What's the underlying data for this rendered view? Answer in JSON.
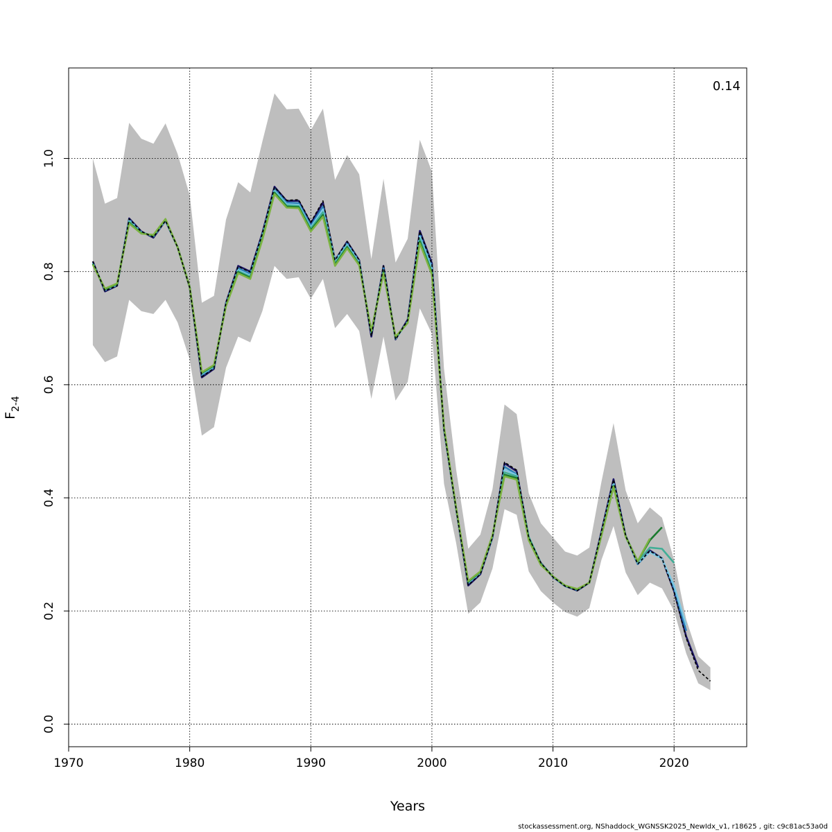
{
  "chart_data": {
    "type": "line",
    "xlabel": "Years",
    "ylabel_main": "F",
    "ylabel_sub": "2-4",
    "annotation": "0.14",
    "xlim": [
      1970,
      2026
    ],
    "ylim": [
      -0.04,
      1.16
    ],
    "x_ticks": [
      1970,
      1980,
      1990,
      2000,
      2010,
      2020
    ],
    "y_ticks": [
      0.0,
      0.2,
      0.4,
      0.6,
      0.8,
      1.0
    ],
    "y_tick_labels": [
      "0.0",
      "0.2",
      "0.4",
      "0.6",
      "0.8",
      "1.0"
    ],
    "grid": true,
    "band_color": "#bebebe",
    "confidence_band": {
      "years": [
        1972,
        1973,
        1974,
        1975,
        1976,
        1977,
        1978,
        1979,
        1980,
        1981,
        1982,
        1983,
        1984,
        1985,
        1986,
        1987,
        1988,
        1989,
        1990,
        1991,
        1992,
        1993,
        1994,
        1995,
        1996,
        1997,
        1998,
        1999,
        2000,
        2001,
        2002,
        2003,
        2004,
        2005,
        2006,
        2007,
        2008,
        2009,
        2010,
        2011,
        2012,
        2013,
        2014,
        2015,
        2016,
        2017,
        2018,
        2019,
        2020,
        2021,
        2022,
        2023
      ],
      "lower": [
        0.67,
        0.64,
        0.65,
        0.75,
        0.73,
        0.725,
        0.75,
        0.71,
        0.645,
        0.51,
        0.525,
        0.63,
        0.685,
        0.675,
        0.73,
        0.81,
        0.787,
        0.79,
        0.752,
        0.787,
        0.7,
        0.725,
        0.695,
        0.575,
        0.685,
        0.572,
        0.605,
        0.735,
        0.69,
        0.425,
        0.32,
        0.195,
        0.215,
        0.275,
        0.38,
        0.37,
        0.27,
        0.235,
        0.215,
        0.198,
        0.19,
        0.205,
        0.29,
        0.35,
        0.268,
        0.228,
        0.25,
        0.24,
        0.2,
        0.125,
        0.072,
        0.06
      ],
      "upper": [
        1.0,
        0.92,
        0.93,
        1.063,
        1.035,
        1.026,
        1.062,
        1.008,
        0.935,
        0.745,
        0.757,
        0.892,
        0.958,
        0.94,
        1.03,
        1.115,
        1.087,
        1.088,
        1.05,
        1.088,
        0.962,
        1.006,
        0.972,
        0.822,
        0.964,
        0.816,
        0.858,
        1.033,
        0.977,
        0.628,
        0.45,
        0.31,
        0.335,
        0.415,
        0.565,
        0.548,
        0.408,
        0.355,
        0.33,
        0.305,
        0.298,
        0.312,
        0.428,
        0.532,
        0.413,
        0.355,
        0.383,
        0.365,
        0.29,
        0.185,
        0.12,
        0.1
      ]
    },
    "series": [
      {
        "color": "#1b1464",
        "x": [
          1972,
          1973,
          1974,
          1975,
          1976,
          1977,
          1978,
          1979,
          1980,
          1981,
          1982,
          1983,
          1984,
          1985,
          1986,
          1987,
          1988,
          1989,
          1990,
          1991,
          1992,
          1993,
          1994,
          1995,
          1996,
          1997,
          1998,
          1999,
          2000,
          2001,
          2002,
          2003,
          2004,
          2005,
          2006,
          2007,
          2008,
          2009,
          2010,
          2011,
          2012,
          2013,
          2014,
          2015,
          2016,
          2017,
          2018,
          2019,
          2020,
          2021,
          2022
        ],
        "y": [
          0.818,
          0.765,
          0.775,
          0.894,
          0.871,
          0.86,
          0.89,
          0.843,
          0.772,
          0.613,
          0.628,
          0.745,
          0.81,
          0.8,
          0.868,
          0.95,
          0.925,
          0.925,
          0.885,
          0.922,
          0.82,
          0.853,
          0.82,
          0.685,
          0.81,
          0.68,
          0.715,
          0.872,
          0.815,
          0.52,
          0.38,
          0.245,
          0.265,
          0.33,
          0.461,
          0.447,
          0.33,
          0.285,
          0.26,
          0.244,
          0.236,
          0.25,
          0.34,
          0.433,
          0.333,
          0.283,
          0.307,
          0.293,
          0.235,
          0.155,
          0.1
        ]
      },
      {
        "color": "#2c7fb8",
        "x": [
          1972,
          1973,
          1974,
          1975,
          1976,
          1977,
          1978,
          1979,
          1980,
          1981,
          1982,
          1983,
          1984,
          1985,
          1986,
          1987,
          1988,
          1989,
          1990,
          1991,
          1992,
          1993,
          1994,
          1995,
          1996,
          1997,
          1998,
          1999,
          2000,
          2001,
          2002,
          2003,
          2004,
          2005,
          2006,
          2007,
          2008,
          2009,
          2010,
          2011,
          2012,
          2013,
          2014,
          2015,
          2016,
          2017,
          2018,
          2019,
          2020,
          2021
        ],
        "y": [
          0.816,
          0.767,
          0.776,
          0.892,
          0.87,
          0.862,
          0.89,
          0.843,
          0.773,
          0.617,
          0.63,
          0.743,
          0.806,
          0.796,
          0.865,
          0.946,
          0.922,
          0.921,
          0.881,
          0.915,
          0.82,
          0.85,
          0.818,
          0.69,
          0.806,
          0.681,
          0.712,
          0.866,
          0.81,
          0.521,
          0.38,
          0.249,
          0.267,
          0.33,
          0.455,
          0.442,
          0.33,
          0.284,
          0.26,
          0.244,
          0.237,
          0.25,
          0.337,
          0.428,
          0.332,
          0.283,
          0.305,
          0.293,
          0.24,
          0.165
        ]
      },
      {
        "color": "#7ec8e3",
        "x": [
          1972,
          1973,
          1974,
          1975,
          1976,
          1977,
          1978,
          1979,
          1980,
          1981,
          1982,
          1983,
          1984,
          1985,
          1986,
          1987,
          1988,
          1989,
          1990,
          1991,
          1992,
          1993,
          1994,
          1995,
          1996,
          1997,
          1998,
          1999,
          2000,
          2001,
          2002,
          2003,
          2004,
          2005,
          2006,
          2007,
          2008,
          2009,
          2010,
          2011,
          2012,
          2013,
          2014,
          2015,
          2016,
          2017,
          2018,
          2019,
          2020,
          2021
        ],
        "y": [
          0.815,
          0.768,
          0.777,
          0.89,
          0.869,
          0.863,
          0.891,
          0.843,
          0.773,
          0.619,
          0.632,
          0.742,
          0.803,
          0.793,
          0.862,
          0.943,
          0.919,
          0.918,
          0.878,
          0.91,
          0.818,
          0.847,
          0.816,
          0.692,
          0.803,
          0.682,
          0.711,
          0.862,
          0.805,
          0.522,
          0.381,
          0.25,
          0.268,
          0.332,
          0.45,
          0.44,
          0.331,
          0.284,
          0.261,
          0.245,
          0.238,
          0.25,
          0.335,
          0.425,
          0.331,
          0.285,
          0.304,
          0.292,
          0.245,
          0.175
        ]
      },
      {
        "color": "#41ae96",
        "x": [
          1972,
          1973,
          1974,
          1975,
          1976,
          1977,
          1978,
          1979,
          1980,
          1981,
          1982,
          1983,
          1984,
          1985,
          1986,
          1987,
          1988,
          1989,
          1990,
          1991,
          1992,
          1993,
          1994,
          1995,
          1996,
          1997,
          1998,
          1999,
          2000,
          2001,
          2002,
          2003,
          2004,
          2005,
          2006,
          2007,
          2008,
          2009,
          2010,
          2011,
          2012,
          2013,
          2014,
          2015,
          2016,
          2017,
          2018,
          2019,
          2020
        ],
        "y": [
          0.814,
          0.769,
          0.778,
          0.888,
          0.868,
          0.864,
          0.892,
          0.843,
          0.773,
          0.62,
          0.633,
          0.741,
          0.801,
          0.791,
          0.86,
          0.941,
          0.917,
          0.916,
          0.876,
          0.905,
          0.815,
          0.845,
          0.814,
          0.693,
          0.801,
          0.683,
          0.71,
          0.858,
          0.8,
          0.523,
          0.381,
          0.251,
          0.269,
          0.333,
          0.445,
          0.438,
          0.331,
          0.284,
          0.261,
          0.245,
          0.238,
          0.25,
          0.334,
          0.422,
          0.332,
          0.287,
          0.312,
          0.31,
          0.285
        ]
      },
      {
        "color": "#1a7a2e",
        "x": [
          1972,
          1973,
          1974,
          1975,
          1976,
          1977,
          1978,
          1979,
          1980,
          1981,
          1982,
          1983,
          1984,
          1985,
          1986,
          1987,
          1988,
          1989,
          1990,
          1991,
          1992,
          1993,
          1994,
          1995,
          1996,
          1997,
          1998,
          1999,
          2000,
          2001,
          2002,
          2003,
          2004,
          2005,
          2006,
          2007,
          2008,
          2009,
          2010,
          2011,
          2012,
          2013,
          2014,
          2015,
          2016,
          2017,
          2018,
          2019
        ],
        "y": [
          0.813,
          0.769,
          0.778,
          0.886,
          0.868,
          0.864,
          0.892,
          0.843,
          0.773,
          0.621,
          0.634,
          0.74,
          0.799,
          0.789,
          0.858,
          0.939,
          0.915,
          0.914,
          0.873,
          0.9,
          0.812,
          0.843,
          0.812,
          0.694,
          0.799,
          0.684,
          0.71,
          0.853,
          0.797,
          0.524,
          0.382,
          0.252,
          0.269,
          0.333,
          0.441,
          0.435,
          0.328,
          0.283,
          0.261,
          0.245,
          0.238,
          0.25,
          0.333,
          0.42,
          0.332,
          0.288,
          0.325,
          0.348
        ]
      },
      {
        "color": "#7cb342",
        "x": [
          1972,
          1973,
          1974,
          1975,
          1976,
          1977,
          1978,
          1979,
          1980,
          1981,
          1982,
          1983,
          1984,
          1985,
          1986,
          1987,
          1988,
          1989,
          1990,
          1991,
          1992,
          1993,
          1994,
          1995,
          1996,
          1997,
          1998,
          1999,
          2000,
          2001,
          2002,
          2003,
          2004,
          2005,
          2006,
          2007,
          2008,
          2009,
          2010,
          2011,
          2012,
          2013,
          2014,
          2015,
          2016,
          2017,
          2018
        ],
        "y": [
          0.812,
          0.77,
          0.779,
          0.885,
          0.867,
          0.865,
          0.893,
          0.843,
          0.773,
          0.622,
          0.635,
          0.739,
          0.797,
          0.787,
          0.856,
          0.937,
          0.913,
          0.912,
          0.871,
          0.897,
          0.81,
          0.841,
          0.811,
          0.695,
          0.797,
          0.685,
          0.709,
          0.85,
          0.795,
          0.525,
          0.382,
          0.253,
          0.27,
          0.334,
          0.438,
          0.432,
          0.325,
          0.281,
          0.261,
          0.245,
          0.239,
          0.25,
          0.333,
          0.419,
          0.331,
          0.288,
          0.328
        ]
      }
    ],
    "reference_series": {
      "style": "dashed",
      "color": "#000000",
      "x": [
        1972,
        1973,
        1974,
        1975,
        1976,
        1977,
        1978,
        1979,
        1980,
        1981,
        1982,
        1983,
        1984,
        1985,
        1986,
        1987,
        1988,
        1989,
        1990,
        1991,
        1992,
        1993,
        1994,
        1995,
        1996,
        1997,
        1998,
        1999,
        2000,
        2001,
        2002,
        2003,
        2004,
        2005,
        2006,
        2007,
        2008,
        2009,
        2010,
        2011,
        2012,
        2013,
        2014,
        2015,
        2016,
        2017,
        2018,
        2019,
        2020,
        2021,
        2022,
        2023
      ],
      "y": [
        0.818,
        0.766,
        0.775,
        0.893,
        0.871,
        0.861,
        0.89,
        0.843,
        0.772,
        0.614,
        0.629,
        0.745,
        0.809,
        0.799,
        0.867,
        0.949,
        0.926,
        0.927,
        0.887,
        0.925,
        0.82,
        0.853,
        0.82,
        0.686,
        0.81,
        0.68,
        0.714,
        0.871,
        0.813,
        0.52,
        0.38,
        0.246,
        0.265,
        0.33,
        0.463,
        0.449,
        0.33,
        0.285,
        0.26,
        0.244,
        0.236,
        0.25,
        0.34,
        0.432,
        0.333,
        0.283,
        0.306,
        0.293,
        0.234,
        0.152,
        0.095,
        0.076
      ]
    }
  },
  "footer_text": "stockassessment.org, NShaddock_WGNSSK2025_NewIdx_v1, r18625 , git: c9c81ac53a0d"
}
